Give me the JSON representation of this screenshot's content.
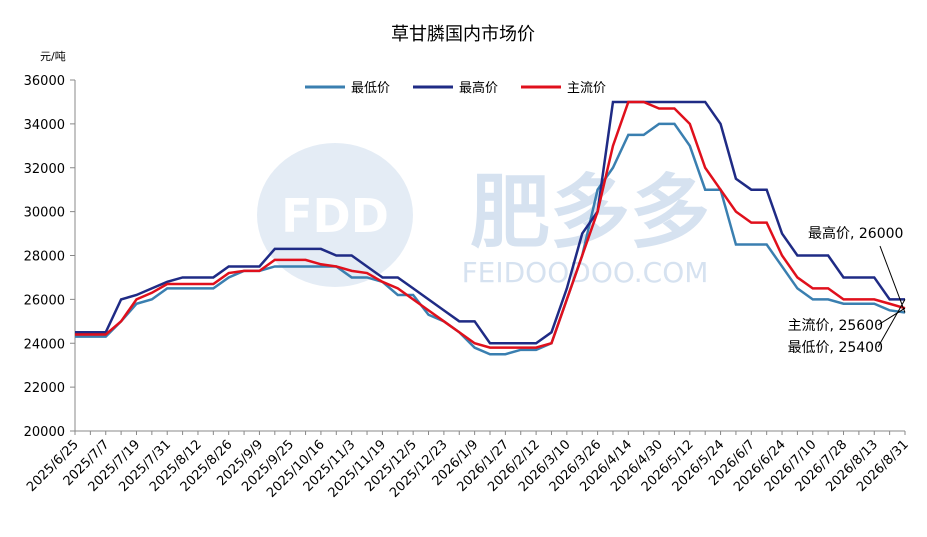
{
  "chart_data": {
    "type": "line",
    "title": "草甘膦国内市场价",
    "y_label": "元/吨",
    "watermark": {
      "logo": "FDD",
      "brand": "肥多多",
      "url": "FEIDOODOO.COM"
    },
    "categories": [
      "2025/6/25",
      null,
      "2025/7/7",
      null,
      "2025/7/19",
      null,
      "2025/7/31",
      null,
      "2025/8/12",
      null,
      "2025/8/26",
      null,
      "2025/9/9",
      null,
      "2025/9/25",
      null,
      "2025/10/16",
      null,
      "2025/11/3",
      null,
      "2025/11/19",
      null,
      "2025/12/5",
      null,
      "2025/12/23",
      null,
      "2026/1/9",
      null,
      "2026/1/27",
      null,
      "2026/2/12",
      null,
      "2026/3/10",
      null,
      "2026/3/26",
      null,
      "2026/4/14",
      null,
      "2026/4/30",
      null,
      "2026/5/12",
      null,
      "2026/5/24",
      null,
      "2026/6/7",
      null,
      "2026/6/24",
      null,
      "2026/7/10",
      null,
      "2026/7/28",
      null,
      "2026/8/13",
      null,
      "2026/8/31"
    ],
    "series": [
      {
        "name": "最低价",
        "color": "#3a7fb0",
        "values": [
          24300,
          24300,
          24300,
          25000,
          25800,
          26000,
          26500,
          26500,
          26500,
          26500,
          27000,
          27300,
          27300,
          27500,
          27500,
          27500,
          27500,
          27500,
          27000,
          27000,
          26800,
          26200,
          26200,
          25300,
          25000,
          24500,
          23800,
          23500,
          23500,
          23700,
          23700,
          24000,
          26000,
          28000,
          31000,
          32000,
          33500,
          33500,
          34000,
          34000,
          33000,
          31000,
          31000,
          28500,
          28500,
          28500,
          27500,
          26500,
          26000,
          26000,
          25800,
          25800,
          25800,
          25500,
          25400
        ]
      },
      {
        "name": "最高价",
        "color": "#1f2b85",
        "values": [
          24500,
          24500,
          24500,
          26000,
          26200,
          26500,
          26800,
          27000,
          27000,
          27000,
          27500,
          27500,
          27500,
          28300,
          28300,
          28300,
          28300,
          28000,
          28000,
          27500,
          27000,
          27000,
          26500,
          26000,
          25500,
          25000,
          25000,
          24000,
          24000,
          24000,
          24000,
          24500,
          26500,
          29000,
          30000,
          35000,
          35000,
          35000,
          35000,
          35000,
          35000,
          35000,
          34000,
          31500,
          31000,
          31000,
          29000,
          28000,
          28000,
          28000,
          27000,
          27000,
          27000,
          26000,
          26000
        ]
      },
      {
        "name": "主流价",
        "color": "#e0101c",
        "values": [
          24400,
          24400,
          24400,
          25000,
          26000,
          26300,
          26700,
          26700,
          26700,
          26700,
          27200,
          27300,
          27300,
          27800,
          27800,
          27800,
          27600,
          27500,
          27300,
          27200,
          26800,
          26500,
          26000,
          25500,
          25000,
          24500,
          24000,
          23800,
          23800,
          23800,
          23800,
          24000,
          26000,
          28000,
          30000,
          33000,
          35000,
          35000,
          34700,
          34700,
          34000,
          32000,
          31000,
          30000,
          29500,
          29500,
          28000,
          27000,
          26500,
          26500,
          26000,
          26000,
          26000,
          25800,
          25600
        ]
      }
    ],
    "annotations": [
      "最高价, 26000",
      "主流价, 25600",
      "最低价, 25400"
    ],
    "ylim": [
      20000,
      36000
    ],
    "yticks": [
      20000,
      22000,
      24000,
      26000,
      28000,
      30000,
      32000,
      34000,
      36000
    ],
    "grid": false,
    "legend": "top"
  }
}
